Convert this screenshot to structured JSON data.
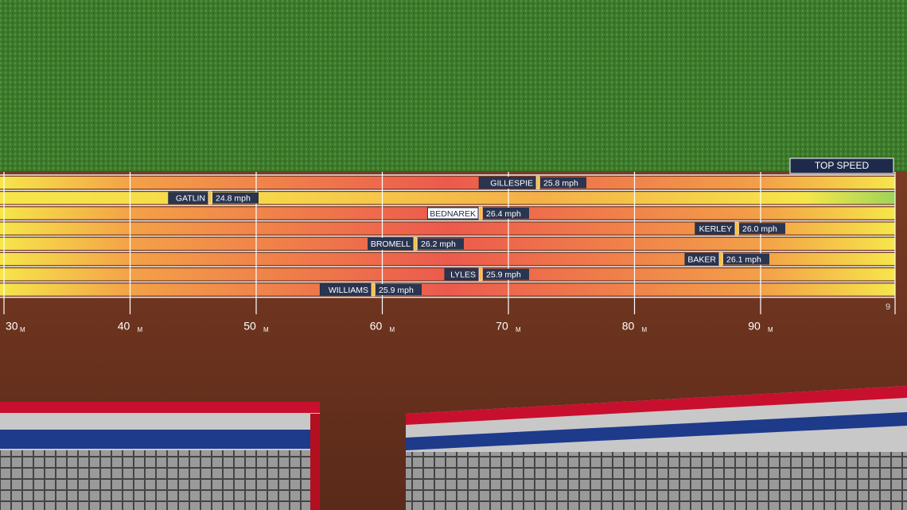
{
  "header": {
    "title": "TOP SPEED"
  },
  "track": {
    "unit": "M",
    "distance_marks": [
      "30",
      "40",
      "50",
      "60",
      "70",
      "80",
      "90"
    ],
    "lane_number": "9"
  },
  "runners": [
    {
      "name": "GILLESPIE",
      "speed": "25.8 mph"
    },
    {
      "name": "GATLIN",
      "speed": "24.8 mph"
    },
    {
      "name": "BEDNAREK",
      "speed": "26.4 mph"
    },
    {
      "name": "KERLEY",
      "speed": "26.0 mph"
    },
    {
      "name": "BROMELL",
      "speed": "26.2 mph"
    },
    {
      "name": "BAKER",
      "speed": "26.1 mph"
    },
    {
      "name": "LYLES",
      "speed": "25.9 mph"
    },
    {
      "name": "WILLIAMS",
      "speed": "25.9 mph"
    }
  ]
}
